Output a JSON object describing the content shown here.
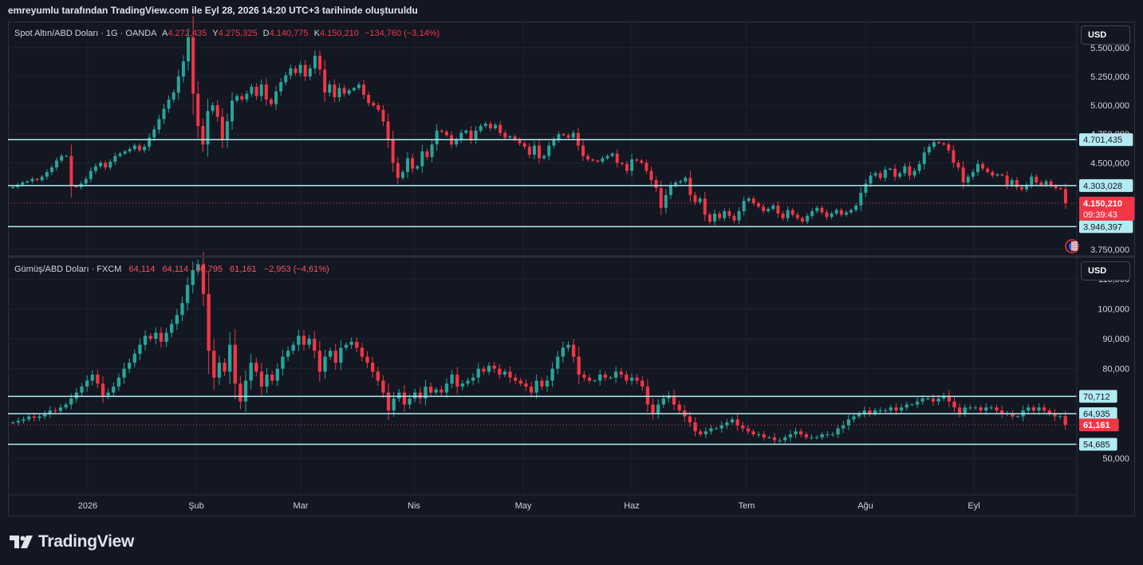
{
  "caption": "emreyumlu tarafından TradingView.com ile Eyl 28, 2026 14:20 UTC+3 tarihinde oluşturuldu",
  "brand": {
    "name": "TradingView",
    "icon": "tradingview-logo-icon"
  },
  "colors": {
    "up": "#26a69a",
    "down": "#f23645",
    "hline": "#b2ebf2",
    "grid": "#1e222d",
    "bg": "#131722"
  },
  "xaxis": {
    "labels": [
      "2026",
      "Şub",
      "Mar",
      "Nis",
      "May",
      "Haz",
      "Tem",
      "Ağu",
      "Eyl"
    ]
  },
  "chart_data": [
    {
      "type": "candlestick",
      "title": "Spot Altın/ABD Doları · 1G · OANDA",
      "ohlc": {
        "o_label": "A",
        "o": "4.272,435",
        "h_label": "Y",
        "h": "4.275,325",
        "l_label": "D",
        "l": "4.140,775",
        "c_label": "K",
        "c": "4.150,210",
        "change": "−134,760 (−3,14%)"
      },
      "currency": "USD",
      "ylim": [
        3700,
        5720
      ],
      "yticks": [
        "5.500,000",
        "5.250,000",
        "5.000,000",
        "4.750,000",
        "4.500,000",
        "3.750,000"
      ],
      "ytick_values": [
        5500,
        5250,
        5000,
        4750,
        4500,
        3750
      ],
      "hlines": [
        {
          "value": 4701.435,
          "label": "4.701,435"
        },
        {
          "value": 4303.028,
          "label": "4.303,028"
        },
        {
          "value": 3946.397,
          "label": "3.946,397"
        }
      ],
      "last_price": {
        "value": 4150.21,
        "label": "4.150,210",
        "countdown": "09:39:43"
      },
      "closes": [
        4290,
        4310,
        4330,
        4340,
        4360,
        4350,
        4380,
        4420,
        4460,
        4520,
        4560,
        4560,
        4300,
        4290,
        4320,
        4360,
        4430,
        4470,
        4500,
        4460,
        4510,
        4560,
        4580,
        4600,
        4620,
        4650,
        4610,
        4640,
        4720,
        4790,
        4880,
        4970,
        5050,
        5110,
        5250,
        5380,
        5590,
        5100,
        4820,
        4660,
        4950,
        5000,
        4900,
        4700,
        4860,
        5040,
        5080,
        5050,
        5100,
        5160,
        5080,
        5180,
        5050,
        5010,
        5120,
        5200,
        5260,
        5320,
        5280,
        5350,
        5250,
        5320,
        5430,
        5310,
        5110,
        5180,
        5070,
        5150,
        5100,
        5130,
        5150,
        5180,
        5090,
        5020,
        5000,
        4960,
        4860,
        4700,
        4500,
        4370,
        4420,
        4540,
        4450,
        4470,
        4600,
        4550,
        4660,
        4780,
        4770,
        4740,
        4660,
        4700,
        4760,
        4780,
        4700,
        4780,
        4820,
        4840,
        4800,
        4830,
        4760,
        4720,
        4730,
        4700,
        4670,
        4640,
        4570,
        4650,
        4540,
        4560,
        4650,
        4700,
        4750,
        4740,
        4720,
        4760,
        4650,
        4560,
        4530,
        4520,
        4510,
        4540,
        4560,
        4580,
        4500,
        4490,
        4430,
        4530,
        4520,
        4500,
        4430,
        4350,
        4280,
        4110,
        4220,
        4300,
        4330,
        4340,
        4370,
        4220,
        4160,
        4190,
        4050,
        3990,
        4060,
        4020,
        4080,
        4040,
        4000,
        4080,
        4170,
        4190,
        4150,
        4120,
        4080,
        4100,
        4130,
        4060,
        4020,
        4090,
        4050,
        4020,
        3990,
        4040,
        4080,
        4110,
        4070,
        4030,
        4060,
        4090,
        4050,
        4070,
        4090,
        4130,
        4240,
        4320,
        4390,
        4410,
        4370,
        4440,
        4450,
        4380,
        4410,
        4470,
        4390,
        4430,
        4490,
        4590,
        4640,
        4680,
        4670,
        4660,
        4610,
        4500,
        4460,
        4330,
        4380,
        4420,
        4490,
        4450,
        4420,
        4390,
        4400,
        4390,
        4310,
        4350,
        4290,
        4270,
        4310,
        4380,
        4330,
        4310,
        4340,
        4300,
        4280,
        4272,
        4150
      ]
    },
    {
      "type": "candlestick",
      "title": "Gümüş/ABD Doları · FXCM",
      "ohlc": {
        "o": "64,114",
        "h": "64,114",
        "l": "60,795",
        "c": "61,161",
        "change": "−2,953 (−4,61%)"
      },
      "currency": "USD",
      "ylim": [
        38,
        117
      ],
      "yticks": [
        "110,000",
        "100,000",
        "90,000",
        "80,000",
        "50,000"
      ],
      "ytick_values": [
        110,
        100,
        90,
        80,
        50
      ],
      "hlines": [
        {
          "value": 70.712,
          "label": "70,712"
        },
        {
          "value": 64.935,
          "label": "64,935"
        },
        {
          "value": 54.685,
          "label": "54,685"
        }
      ],
      "last_price": {
        "value": 61.161,
        "label": "61,161"
      },
      "closes": [
        62,
        62.5,
        63,
        64,
        63.5,
        64,
        65,
        66,
        65.8,
        67,
        68,
        70,
        72,
        74,
        76,
        78,
        75,
        71,
        72,
        74,
        77,
        80,
        82,
        85,
        88,
        91,
        90,
        92,
        89,
        92,
        95,
        98,
        102,
        108,
        113,
        115,
        105,
        86,
        77,
        82,
        79,
        88,
        75,
        69,
        76,
        82,
        79,
        74,
        78,
        76,
        80,
        84,
        86,
        88,
        91,
        88,
        90,
        86,
        79,
        84,
        86,
        82,
        87,
        88,
        89,
        87,
        84,
        82,
        79,
        76,
        72,
        66,
        70,
        72,
        68,
        70,
        72,
        70,
        74,
        72,
        73,
        72,
        75,
        78,
        74,
        75,
        76,
        77,
        80,
        79,
        81,
        80,
        78,
        79,
        77,
        76,
        75,
        74,
        72,
        76,
        74,
        76,
        80,
        84,
        87,
        88,
        84,
        78,
        77,
        76,
        76,
        78,
        77,
        77,
        79,
        78,
        76,
        77,
        76,
        74,
        68,
        65,
        68,
        70,
        71,
        68,
        66,
        64,
        62,
        59,
        58,
        59,
        60,
        60,
        61,
        62,
        63,
        61,
        60,
        59,
        58,
        58,
        57,
        57,
        56,
        56,
        57,
        58,
        59,
        58,
        57,
        57,
        57,
        58,
        58,
        58,
        60,
        61,
        63,
        64,
        65,
        66,
        65,
        66,
        66,
        66,
        67,
        66,
        67,
        68,
        68,
        69,
        70,
        70,
        69,
        70,
        71,
        69,
        67,
        65,
        67,
        67,
        67,
        66,
        67,
        67,
        66,
        65,
        65,
        64,
        64,
        66,
        67,
        66,
        67,
        66,
        65,
        64,
        64.1,
        61.2
      ]
    }
  ]
}
